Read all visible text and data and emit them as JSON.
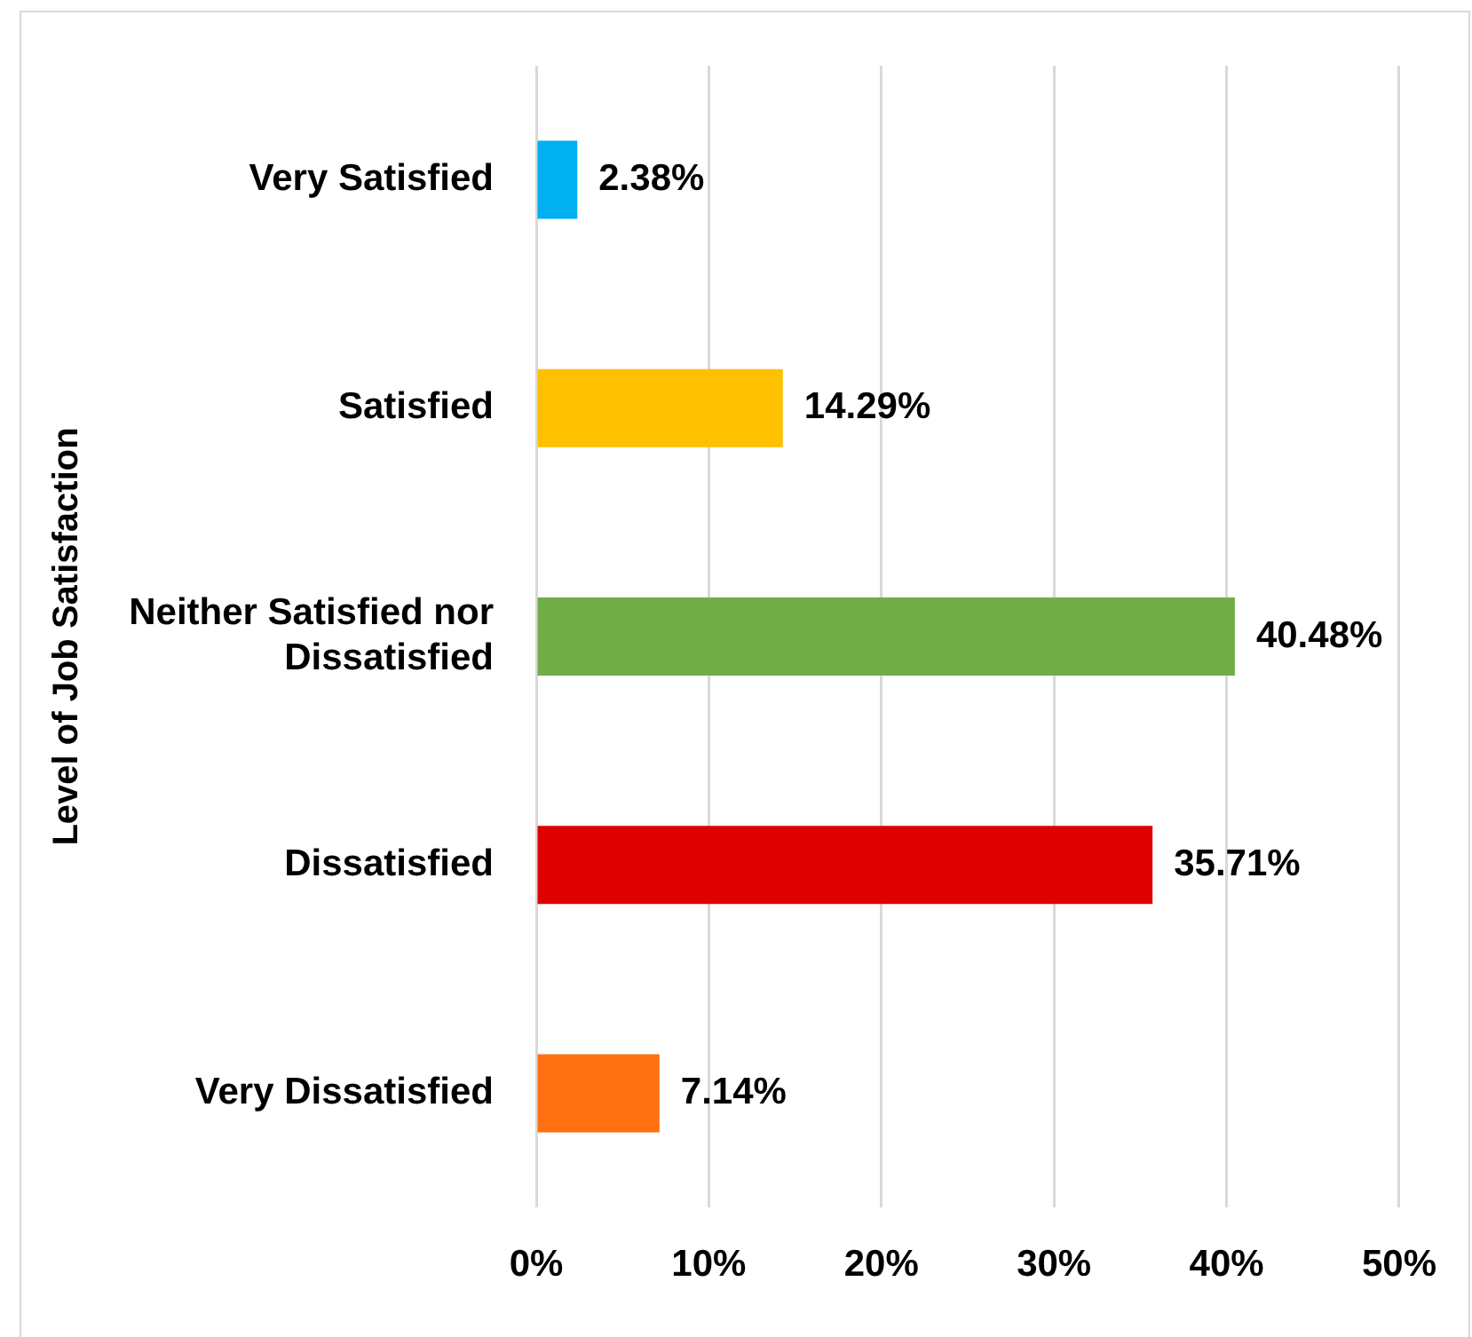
{
  "chart_data": {
    "type": "bar",
    "orientation": "horizontal",
    "ylabel": "Level of Job Satisfaction",
    "categories": [
      "Very Satisfied",
      "Satisfied",
      "Neither Satisfied nor Dissatisfied",
      "Dissatisfied",
      "Very Dissatisfied"
    ],
    "values": [
      2.38,
      14.29,
      40.48,
      35.71,
      7.14
    ],
    "colors": [
      "#00b0f0",
      "#ffc000",
      "#70ad47",
      "#df0000",
      "#ff7010"
    ],
    "value_labels": [
      "2.38%",
      "14.29%",
      "40.48%",
      "35.71%",
      "7.14%"
    ],
    "xlim": [
      0,
      50
    ],
    "xticks": [
      {
        "value": 0,
        "label": "0%"
      },
      {
        "value": 10,
        "label": "10%"
      },
      {
        "value": 20,
        "label": "20%"
      },
      {
        "value": 30,
        "label": "30%"
      },
      {
        "value": 40,
        "label": "40%"
      },
      {
        "value": 50,
        "label": "50%"
      }
    ],
    "grid": "x",
    "legend": false
  }
}
